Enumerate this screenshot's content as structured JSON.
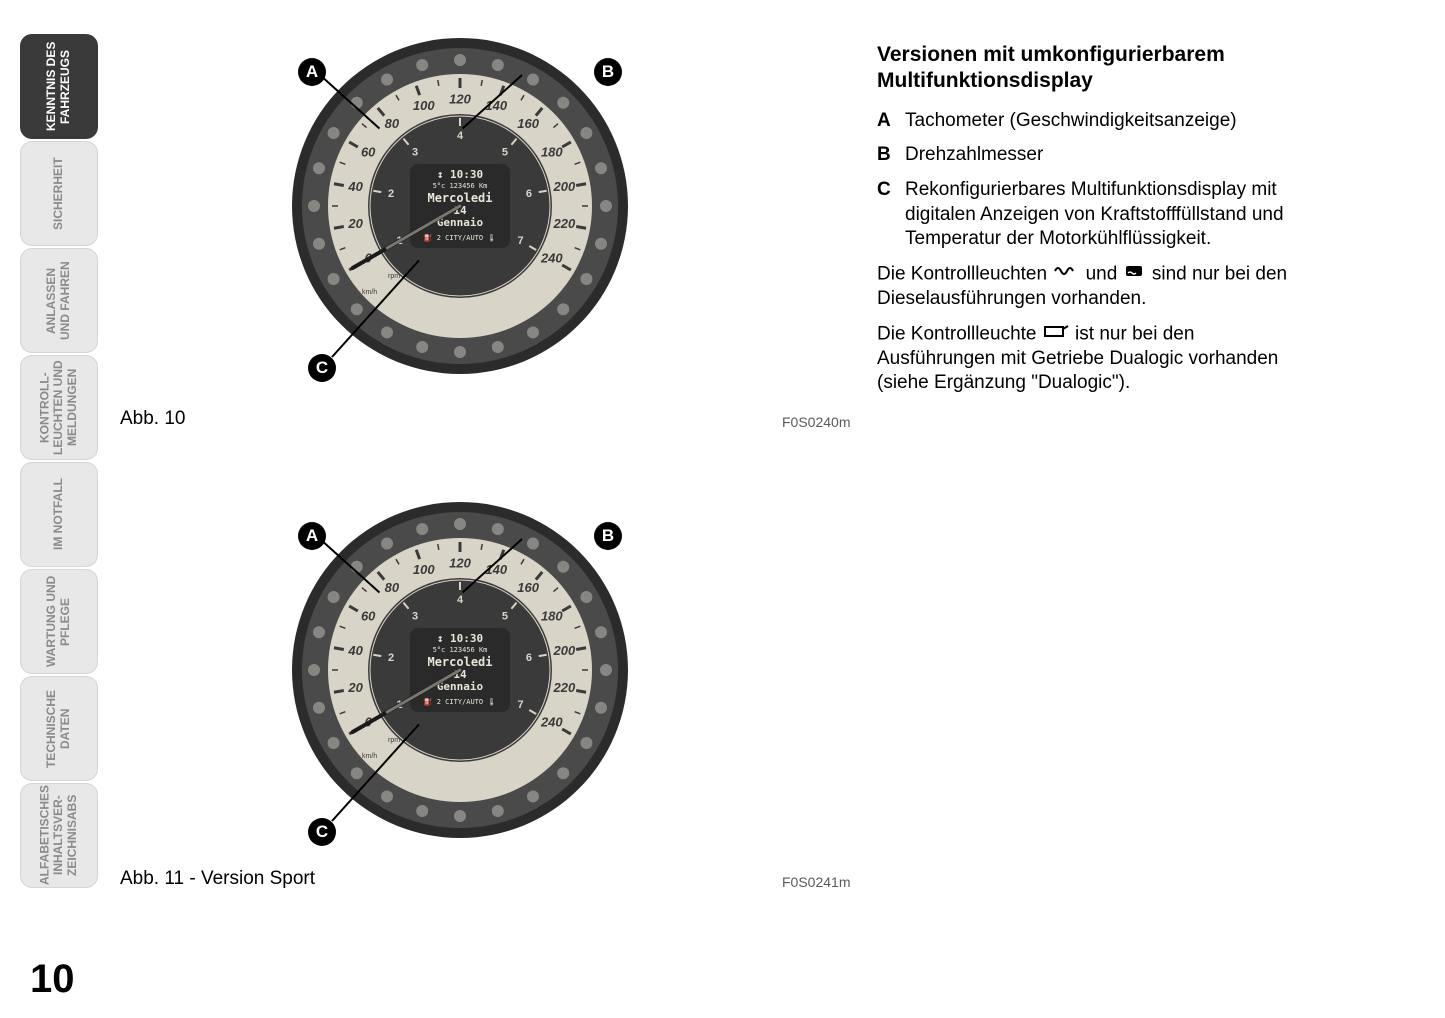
{
  "page_number": "10",
  "tabs": [
    {
      "label": "KENNTNIS DES FAHRZEUGS",
      "active": true
    },
    {
      "label": "SICHERHEIT",
      "active": false
    },
    {
      "label": "ANLASSEN UND FAHREN",
      "active": false
    },
    {
      "label": "KONTROLL-LEUCHTEN UND MELDUNGEN",
      "active": false
    },
    {
      "label": "IM NOTFALL",
      "active": false
    },
    {
      "label": "WARTUNG UND PFLEGE",
      "active": false
    },
    {
      "label": "TECHNISCHE DATEN",
      "active": false
    },
    {
      "label": "ALFABETISCHES INHALTSVER-ZEICHNISABS",
      "active": false
    }
  ],
  "figures": {
    "fig1": {
      "label": "Abb. 10",
      "ref": "F0S0240m",
      "callouts": {
        "A": "A",
        "B": "B",
        "C": "C"
      },
      "gauge": {
        "outer_bg": "#4a4a4a",
        "outer_edge": "#2b2b2b",
        "speed_face": "#d9d4c8",
        "speed_ticks_color": "#3a3a3a",
        "speed_numbers": [
          "0",
          "20",
          "40",
          "60",
          "80",
          "100",
          "120",
          "140",
          "160",
          "180",
          "200",
          "220",
          "240"
        ],
        "speed_label_color": "#3a3a3a",
        "rpm_face": "#3a3a3a",
        "rpm_numbers": [
          "1",
          "2",
          "3",
          "4",
          "5",
          "6",
          "7"
        ],
        "rpm_color": "#d9d4c8",
        "center_bg": "#3a3a3a",
        "display_bg": "#2a2a2a",
        "display_text_color": "#e8e4d8",
        "display_time": "10:30",
        "display_temp": "5°c",
        "display_odo": "123456 Km",
        "display_day": "Mercoledi",
        "display_date": "14",
        "display_month": "Gennaio",
        "display_gear": "2",
        "display_mode1": "CITY",
        "display_mode2": "AUTO",
        "unit_rpm": "rpm ×1000",
        "unit_kmh": "km/h",
        "icon_color": "#b0afa8"
      }
    },
    "fig2": {
      "label": "Abb. 11 - Version Sport",
      "ref": "F0S0241m"
    }
  },
  "right": {
    "heading": "Versionen mit umkonfigurierbarem Multifunktionsdisplay",
    "items": [
      {
        "letter": "A",
        "text": "Tachometer (Geschwindigkeitsanzeige)"
      },
      {
        "letter": "B",
        "text": "Drehzahlmesser"
      },
      {
        "letter": "C",
        "text": "Rekonfigurierbares Multifunktionsdisplay mit digitalen Anzeigen von Kraftstofffüllstand und Temperatur der Motorkühlflüssigkeit."
      }
    ],
    "para1_before": "Die Kontrollleuchten ",
    "para1_mid": " und ",
    "para1_after": " sind nur bei den Dieselausführungen vorhanden.",
    "para2_before": "Die Kontrollleuchte ",
    "para2_after": " ist nur bei den Ausführungen mit Getriebe Dualogic vorhanden (siehe Ergänzung \"Dualogic\")."
  },
  "icons": {
    "glowplug_name": "glowplug-icon",
    "waterinfuel_name": "water-in-fuel-icon",
    "gearbox_name": "gearbox-failure-icon"
  },
  "colors": {
    "text": "#000000",
    "tab_active_bg": "#3a3a3a",
    "tab_active_fg": "#ffffff",
    "tab_inactive_bg": "#e8e8e8",
    "tab_inactive_fg": "#8a8a8a"
  }
}
